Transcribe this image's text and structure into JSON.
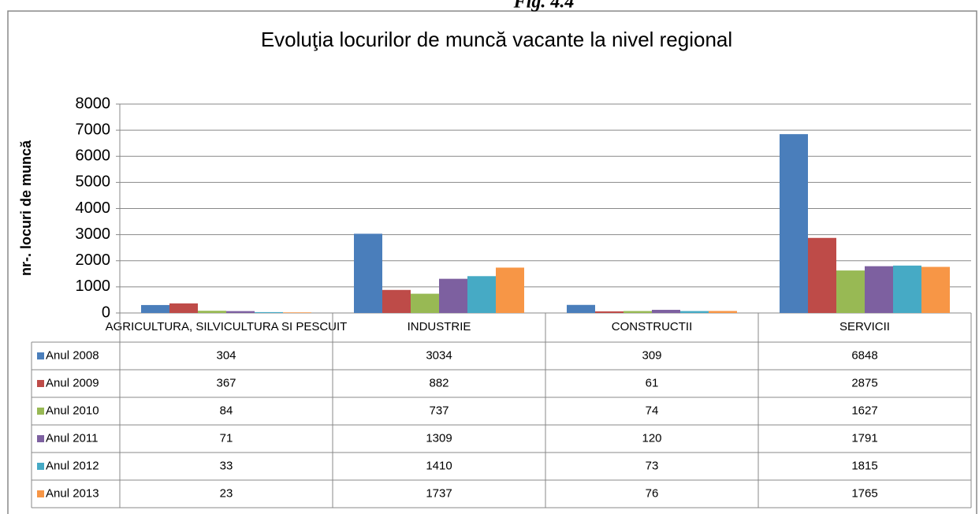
{
  "caption": "Fig. 4.4",
  "chart_data": {
    "type": "bar",
    "title": "Evoluţia locurilor de muncă vacante la nivel regional",
    "y_label": "nr-. locuri de muncă",
    "categories": [
      "AGRICULTURA, SILVICULTURA SI PESCUIT",
      "INDUSTRIE",
      "CONSTRUCTII",
      "SERVICII"
    ],
    "series": [
      {
        "name": "Anul 2008",
        "color": "#4a7ebb",
        "values": [
          304,
          3034,
          309,
          6848
        ]
      },
      {
        "name": "Anul 2009",
        "color": "#be4b48",
        "values": [
          367,
          882,
          61,
          2875
        ]
      },
      {
        "name": "Anul 2010",
        "color": "#98b954",
        "values": [
          84,
          737,
          74,
          1627
        ]
      },
      {
        "name": "Anul 2011",
        "color": "#7d60a0",
        "values": [
          71,
          1309,
          120,
          1791
        ]
      },
      {
        "name": "Anul 2012",
        "color": "#46aac5",
        "values": [
          33,
          1410,
          73,
          1815
        ]
      },
      {
        "name": "Anul 2013",
        "color": "#f79646",
        "values": [
          23,
          1737,
          76,
          1765
        ]
      }
    ],
    "ylim": [
      0,
      8000
    ],
    "yticks": [
      0,
      1000,
      2000,
      3000,
      4000,
      5000,
      6000,
      7000,
      8000
    ],
    "grid": true,
    "data_table": true
  }
}
